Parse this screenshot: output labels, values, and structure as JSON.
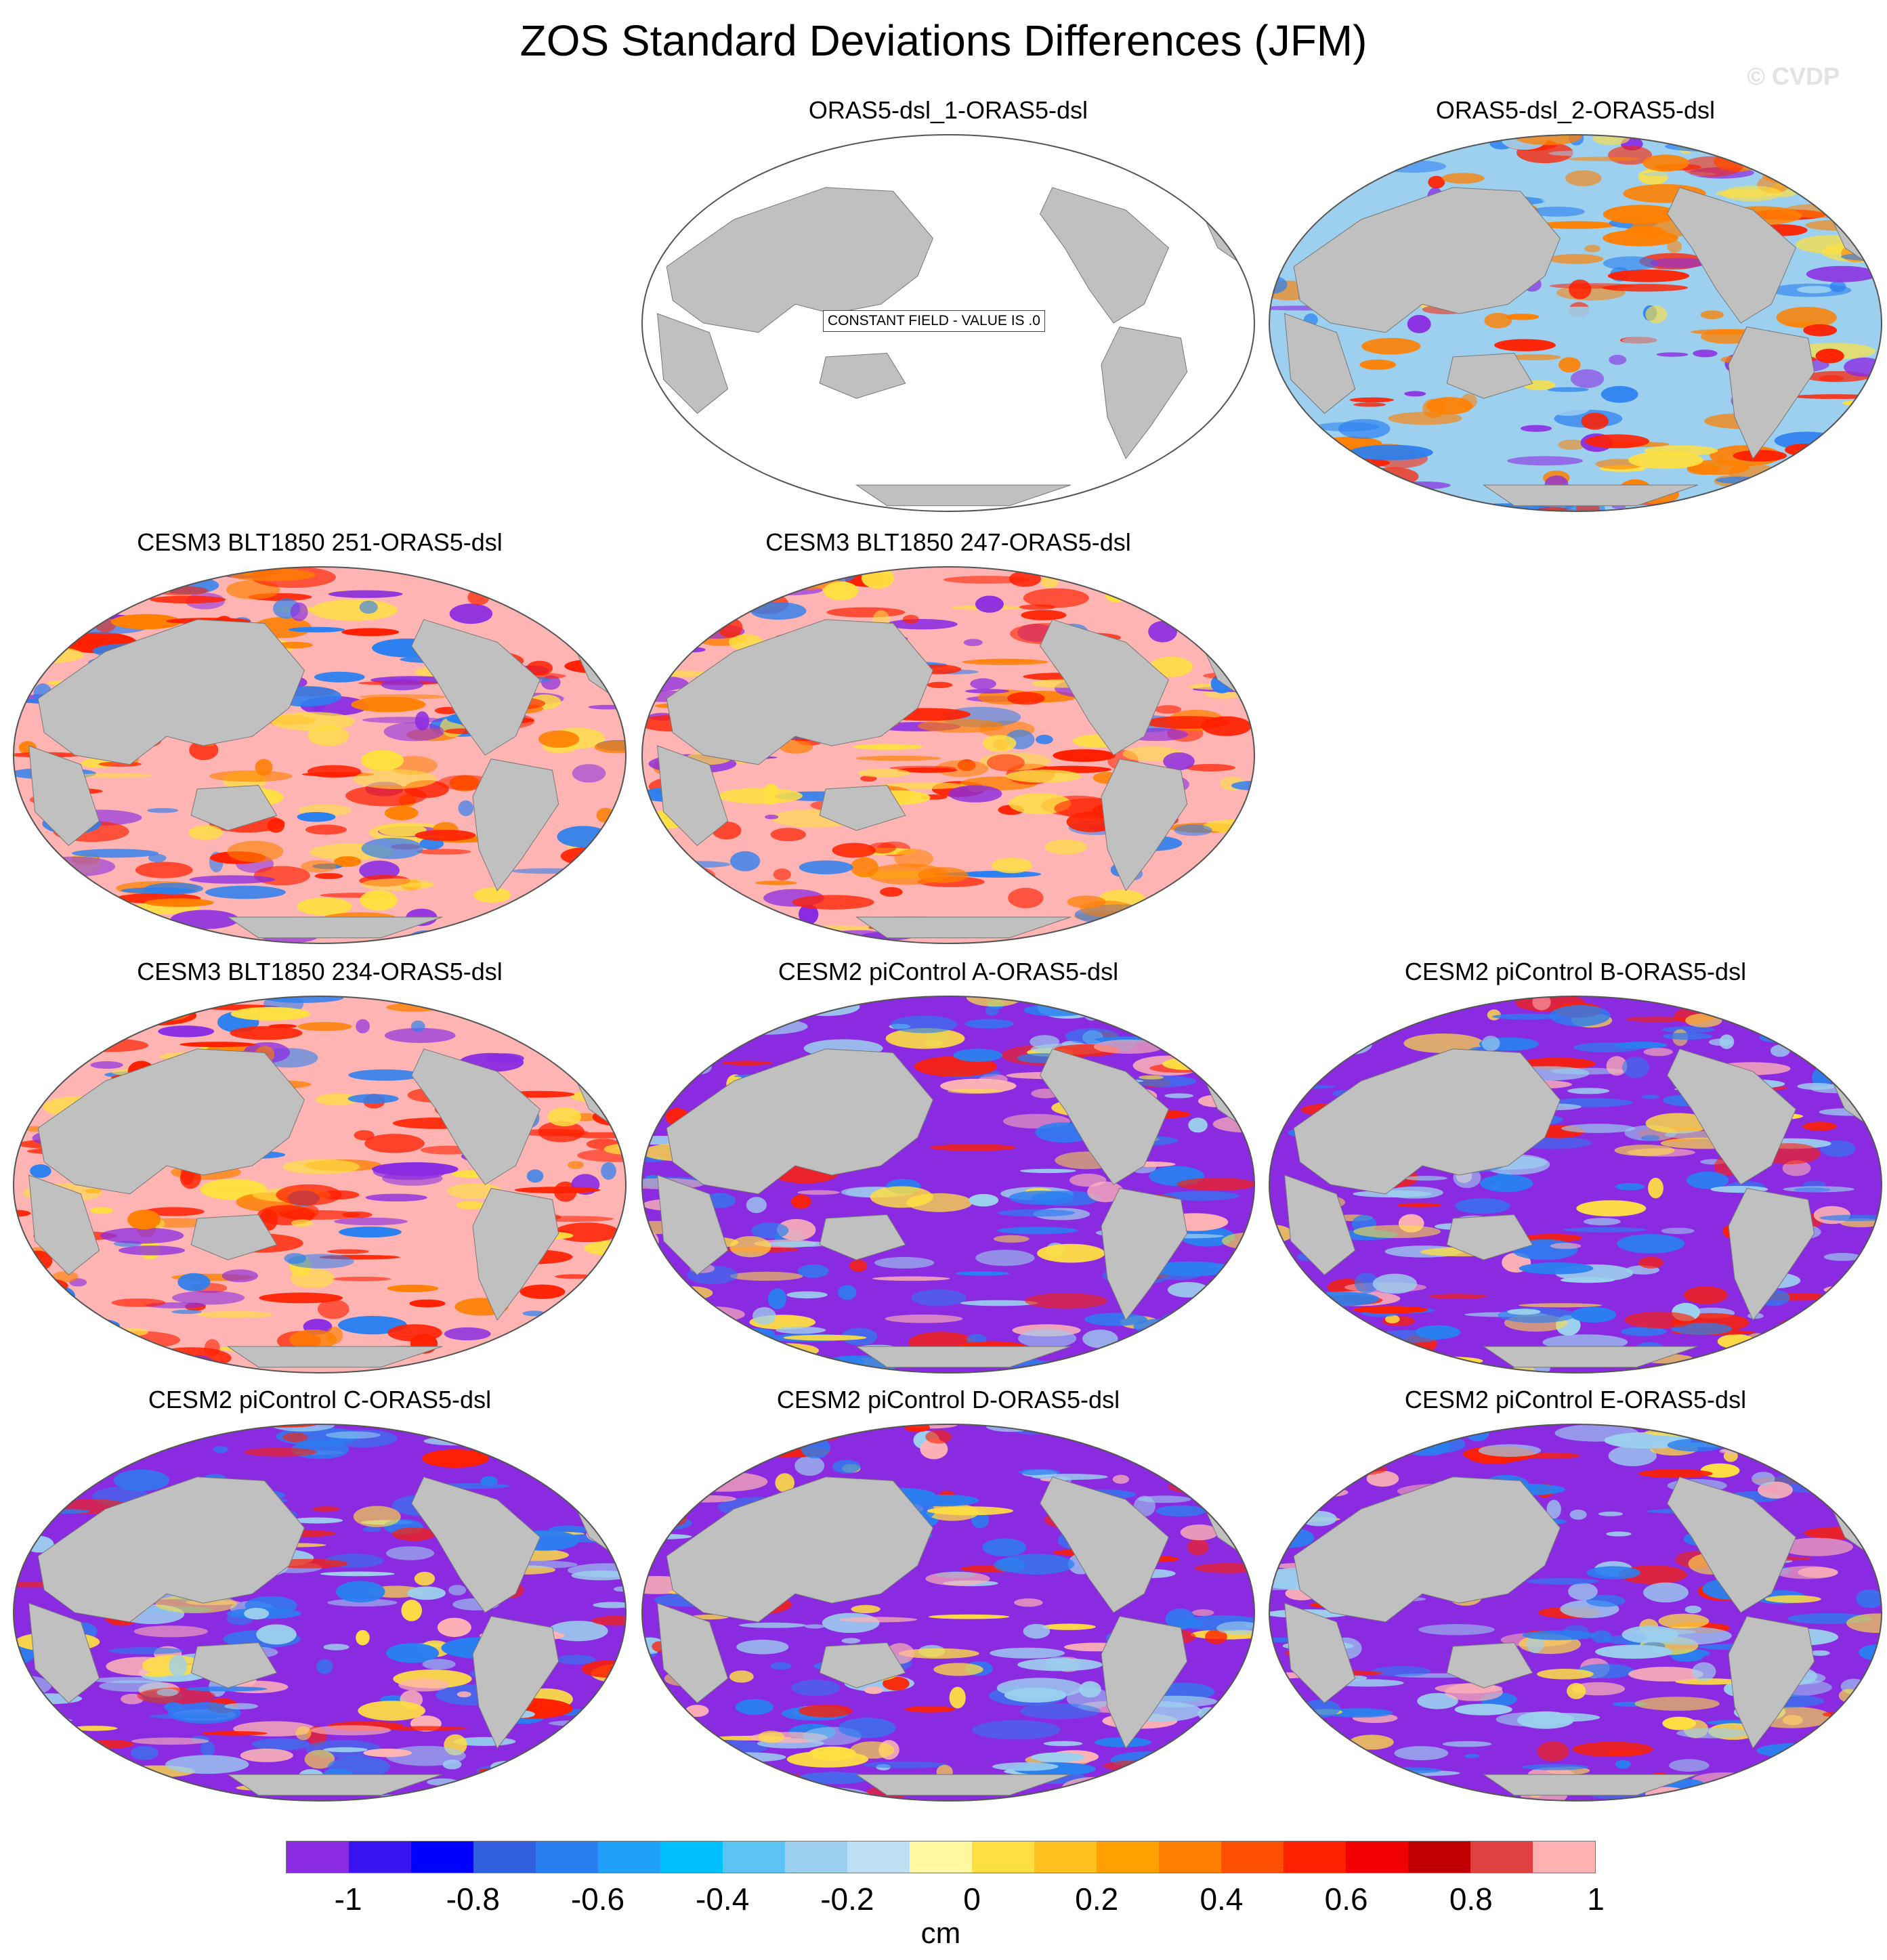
{
  "title": "ZOS Standard Deviations Differences (JFM)",
  "watermark": "© CVDP",
  "panels": [
    {
      "title": "ORAS5-dsl_1-ORAS5-dsl",
      "style": "constant",
      "label": "CONSTANT FIELD - VALUE IS .0"
    },
    {
      "title": "ORAS5-dsl_2-ORAS5-dsl",
      "style": "mixed"
    },
    {
      "title": "CESM3 BLT1850 251-ORAS5-dsl",
      "style": "pink"
    },
    {
      "title": "CESM3 BLT1850 247-ORAS5-dsl",
      "style": "pink"
    },
    {
      "title": "CESM3 BLT1850 234-ORAS5-dsl",
      "style": "pink"
    },
    {
      "title": "CESM2 piControl A-ORAS5-dsl",
      "style": "purple"
    },
    {
      "title": "CESM2 piControl B-ORAS5-dsl",
      "style": "purple"
    },
    {
      "title": "CESM2 piControl C-ORAS5-dsl",
      "style": "purple"
    },
    {
      "title": "CESM2 piControl D-ORAS5-dsl",
      "style": "purple"
    },
    {
      "title": "CESM2 piControl E-ORAS5-dsl",
      "style": "purple"
    }
  ],
  "colorbar": {
    "colors": [
      "#8a2be2",
      "#3a14f0",
      "#0000ff",
      "#3060e0",
      "#2a7ff0",
      "#1e9ff8",
      "#00bfff",
      "#5cc4f4",
      "#9cd0ee",
      "#bde0f4",
      "#fff8a0",
      "#ffe040",
      "#ffc020",
      "#ffa000",
      "#ff8000",
      "#ff5000",
      "#ff2000",
      "#f00000",
      "#c00000",
      "#e04040",
      "#ffb0b0"
    ],
    "ticks": [
      "-1",
      "-0.8",
      "-0.6",
      "-0.4",
      "-0.2",
      "0",
      "0.2",
      "0.4",
      "0.6",
      "0.8",
      "1"
    ],
    "units": "cm"
  },
  "map_colors": {
    "land": "#c0c0c0",
    "pink": "#ffb4b4",
    "purple": "#8a2be2",
    "red": "#ff2000",
    "blue": "#2a7ff0",
    "lightblue": "#9cd0ee",
    "yellow": "#ffe040",
    "orange": "#ff8000"
  }
}
